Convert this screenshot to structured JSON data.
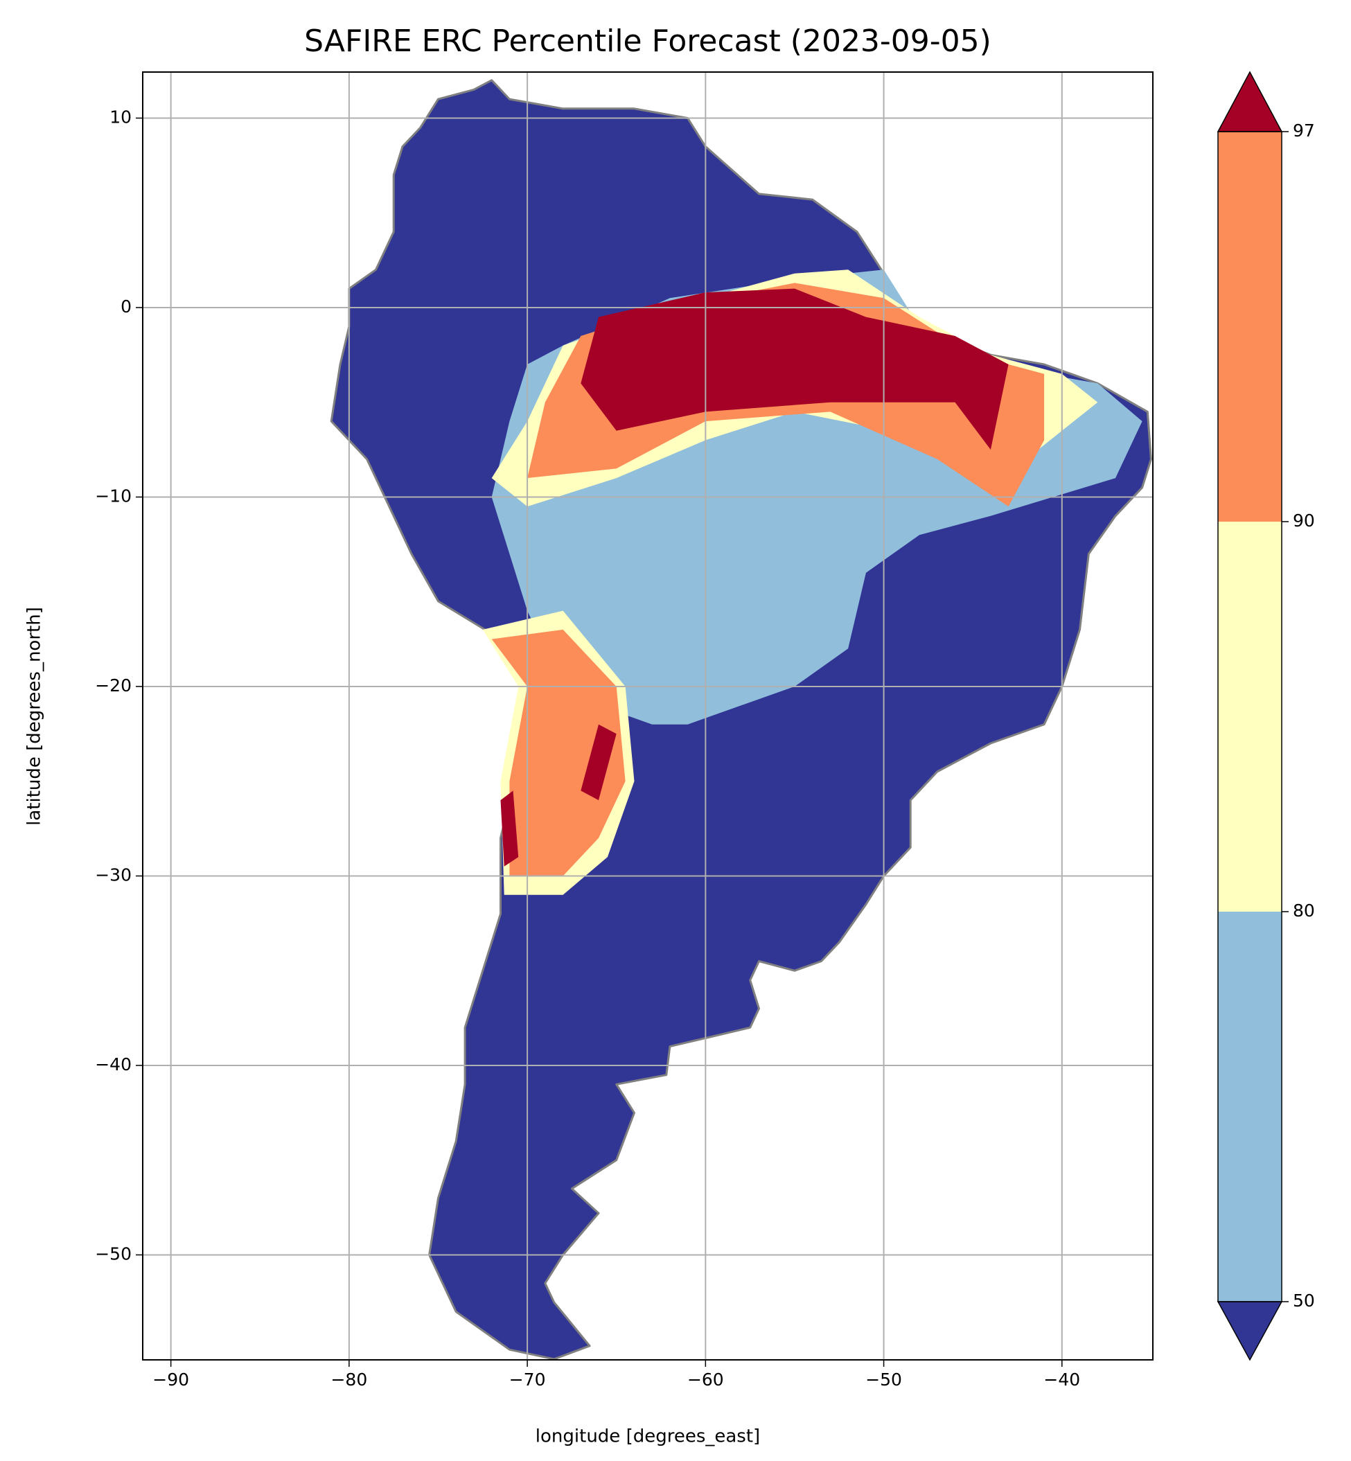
{
  "chart_data": {
    "type": "map",
    "title": "SAFIRE ERC Percentile Forecast (2023-09-05)",
    "x_label": "longitude [degrees_east]",
    "y_label": "latitude [degrees_north]",
    "xlim": [
      -91.58,
      -34.9
    ],
    "ylim": [
      -55.54,
      12.43
    ],
    "xticks": [
      {
        "value": -90,
        "label": "−90"
      },
      {
        "value": -80,
        "label": "−80"
      },
      {
        "value": -70,
        "label": "−70"
      },
      {
        "value": -60,
        "label": "−60"
      },
      {
        "value": -50,
        "label": "−50"
      },
      {
        "value": -40,
        "label": "−40"
      }
    ],
    "yticks": [
      {
        "value": -50,
        "label": "−50"
      },
      {
        "value": -40,
        "label": "−40"
      },
      {
        "value": -30,
        "label": "−30"
      },
      {
        "value": -20,
        "label": "−20"
      },
      {
        "value": -10,
        "label": "−10"
      },
      0,
      10
    ],
    "grid": true,
    "colorbar": {
      "levels": [
        50,
        80,
        90,
        97
      ],
      "colors": [
        "#313695",
        "#91bfdb",
        "#ffffbf",
        "#fc8d59",
        "#a50026"
      ],
      "extend": "both"
    }
  }
}
